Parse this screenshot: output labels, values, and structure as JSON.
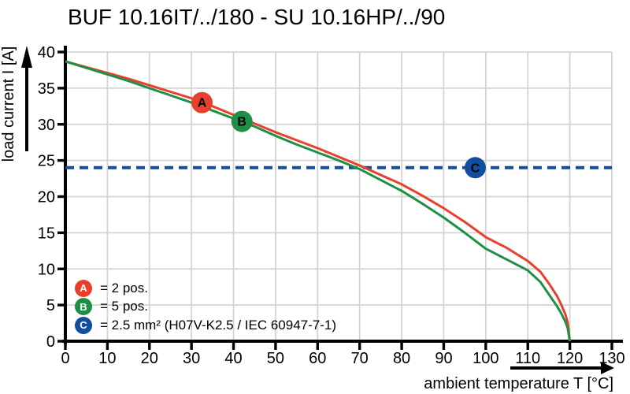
{
  "title": "BUF 10.16IT/../180 - SU 10.16HP/../90",
  "chart_data": {
    "type": "line",
    "title": "BUF 10.16IT/../180 - SU 10.16HP/../90",
    "xlabel": "ambient temperature T [°C]",
    "ylabel": "load current I [A]",
    "xlim": [
      0,
      130
    ],
    "ylim": [
      0,
      40
    ],
    "x_ticks": [
      0,
      10,
      20,
      30,
      40,
      50,
      60,
      70,
      80,
      90,
      100,
      110,
      120,
      130
    ],
    "y_ticks": [
      0,
      5,
      10,
      15,
      20,
      25,
      30,
      35,
      40
    ],
    "grid": true,
    "legend_position": "bottom-left-inside",
    "colors": {
      "red": "#e8402d",
      "green": "#1f8f47",
      "blue": "#114f9e",
      "grid": "#d4d4d4",
      "axis": "#000000"
    },
    "series": [
      {
        "name": "A",
        "label": "2 pos.",
        "color": "#e8402d",
        "x": [
          0,
          5,
          10,
          15,
          20,
          25,
          30,
          35,
          40,
          45,
          50,
          55,
          60,
          65,
          70,
          75,
          80,
          85,
          90,
          95,
          100,
          105,
          110,
          113,
          115,
          117,
          118,
          119,
          119.5,
          120
        ],
        "y": [
          38.7,
          37.9,
          37.1,
          36.3,
          35.4,
          34.5,
          33.6,
          32.5,
          31.3,
          30.1,
          28.9,
          27.8,
          26.7,
          25.5,
          24.3,
          23.0,
          21.7,
          20.1,
          18.4,
          16.5,
          14.4,
          12.9,
          11.1,
          9.6,
          8.0,
          6.2,
          5.0,
          3.6,
          2.6,
          0
        ]
      },
      {
        "name": "B",
        "label": "5 pos.",
        "color": "#1f8f47",
        "x": [
          0,
          5,
          10,
          15,
          20,
          25,
          30,
          35,
          40,
          45,
          50,
          55,
          60,
          65,
          70,
          75,
          80,
          85,
          90,
          95,
          100,
          105,
          110,
          113,
          115,
          117,
          118,
          119,
          119.5,
          120
        ],
        "y": [
          38.7,
          37.8,
          36.9,
          36.0,
          35.0,
          34.0,
          33.0,
          31.9,
          30.8,
          29.7,
          28.4,
          27.2,
          26.1,
          25.0,
          23.8,
          22.3,
          20.8,
          19.0,
          17.1,
          15.0,
          12.8,
          11.3,
          9.8,
          8.2,
          6.5,
          4.8,
          3.8,
          2.6,
          1.8,
          0
        ]
      }
    ],
    "reference_line": {
      "name": "C",
      "value": 24,
      "color": "#114f9e",
      "style": "dashed"
    },
    "markers": [
      {
        "letter": "A",
        "x": 32.5,
        "y": 33.0,
        "color": "#e8402d"
      },
      {
        "letter": "B",
        "x": 42.0,
        "y": 30.4,
        "color": "#1f8f47"
      },
      {
        "letter": "C",
        "x": 97.5,
        "y": 24.0,
        "color": "#114f9e"
      }
    ],
    "legend": [
      {
        "letter": "A",
        "color": "#e8402d",
        "text": "= 2 pos."
      },
      {
        "letter": "B",
        "color": "#1f8f47",
        "text": "= 5 pos."
      },
      {
        "letter": "C",
        "color": "#114f9e",
        "text": "= 2.5 mm² (H07V-K2.5 / IEC 60947-7-1)"
      }
    ]
  }
}
